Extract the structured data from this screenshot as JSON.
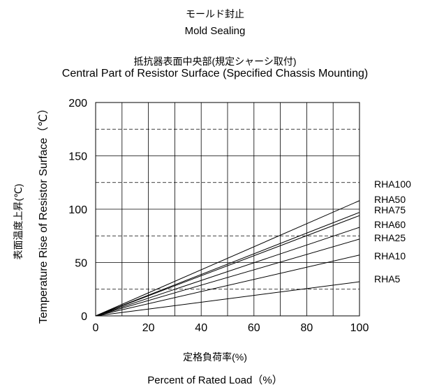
{
  "header": {
    "title_jp": "モールド封止",
    "title_en": "Mold Sealing",
    "subtitle_jp": "抵抗器表面中央部(規定シャーシ取付)",
    "subtitle_en": "Central Part of Resistor Surface (Specified Chassis Mounting)"
  },
  "axes": {
    "xlabel_jp": "定格負荷率(%)",
    "xlabel_en": "Percent of Rated Load（%）",
    "ylabel_jp": "表面温度上昇(℃)",
    "ylabel_en": "Temperature Rise of Resistor Surface（℃）"
  },
  "chart_data": {
    "type": "line",
    "title": "Mold Sealing",
    "subtitle": "Central Part of Resistor Surface (Specified Chassis Mounting)",
    "xlabel": "Percent of Rated Load（%）",
    "ylabel": "Temperature Rise of Resistor Surface（℃）",
    "xlim": [
      0,
      100
    ],
    "ylim": [
      0,
      200
    ],
    "xticks": [
      0,
      20,
      40,
      60,
      80,
      100
    ],
    "yticks": [
      0,
      50,
      100,
      150,
      200
    ],
    "grid": true,
    "legend": "right",
    "series": [
      {
        "name": "RHA100",
        "x": [
          0,
          100
        ],
        "y": [
          0,
          108
        ]
      },
      {
        "name": "RHA50",
        "x": [
          0,
          100
        ],
        "y": [
          0,
          97
        ]
      },
      {
        "name": "RHA75",
        "x": [
          0,
          100
        ],
        "y": [
          0,
          94
        ]
      },
      {
        "name": "RHA60",
        "x": [
          0,
          100
        ],
        "y": [
          0,
          83
        ]
      },
      {
        "name": "RHA25",
        "x": [
          0,
          100
        ],
        "y": [
          0,
          72
        ]
      },
      {
        "name": "RHA10",
        "x": [
          0,
          100
        ],
        "y": [
          0,
          57
        ]
      },
      {
        "name": "RHA5",
        "x": [
          0,
          100
        ],
        "y": [
          0,
          32
        ]
      }
    ]
  }
}
